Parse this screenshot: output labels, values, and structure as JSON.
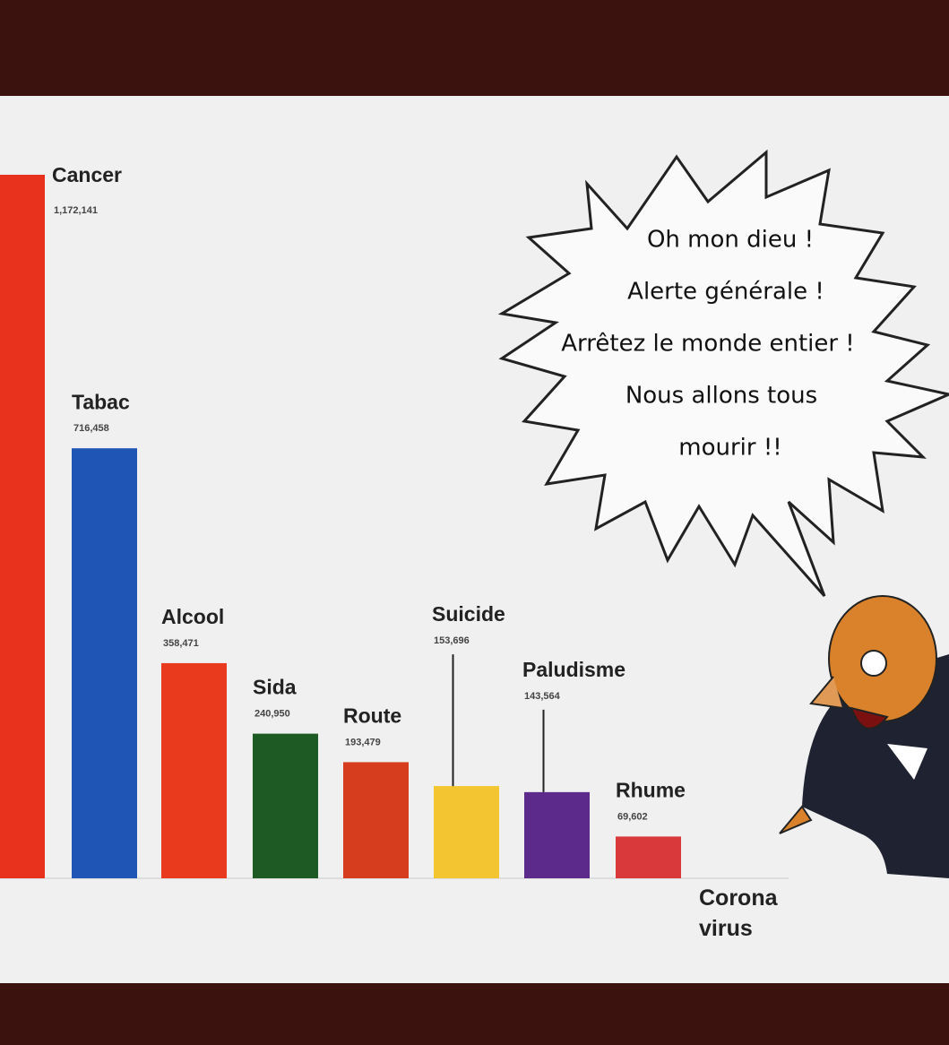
{
  "chart_data": {
    "type": "bar",
    "categories": [
      "Cancer",
      "Tabac",
      "Alcool",
      "Sida",
      "Route",
      "Suicide",
      "Paludisme",
      "Rhume",
      "Corona virus"
    ],
    "values": [
      1172141,
      716458,
      358471,
      240950,
      193479,
      153696,
      143564,
      69602,
      0
    ],
    "value_labels": [
      "1,172,141",
      "716,458",
      "358,471",
      "240,950",
      "193,479",
      "153,696",
      "143,564",
      "69,602",
      null
    ],
    "colors": [
      "#e8321e",
      "#1f55b5",
      "#ea3a1e",
      "#1e5a23",
      "#d63d1e",
      "#f3c530",
      "#5b2a8a",
      "#d9393a",
      "#222222"
    ],
    "annotations": [
      "Oh mon dieu !",
      "Alerte générale !",
      "Arrêtez le monde entier !",
      "Nous allons tous",
      "mourir !!"
    ]
  }
}
